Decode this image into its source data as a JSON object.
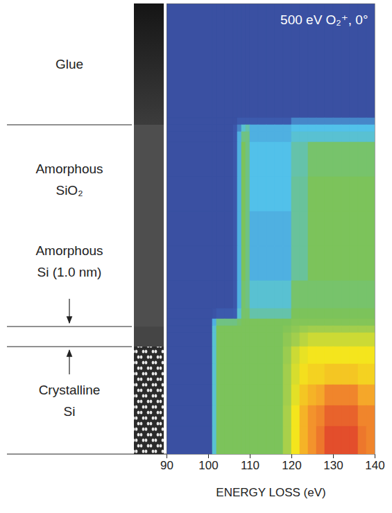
{
  "chart_data": {
    "type": "heatmap",
    "annotation": "500 eV O₂⁺, 0°",
    "xlabel": "ENERGY LOSS (eV)",
    "xlim": [
      90,
      140
    ],
    "xticks": [
      90,
      100,
      110,
      120,
      130,
      140
    ],
    "ylim": [
      0,
      65
    ],
    "tick_labels": "x",
    "zlim": [
      0,
      10
    ],
    "x_bins": [
      90,
      101,
      102,
      104,
      106,
      107,
      108,
      109,
      110,
      112,
      114,
      116,
      118,
      120,
      122,
      124,
      126,
      128,
      130,
      132,
      134,
      136,
      138,
      140
    ],
    "y_bins": [
      0,
      16.5,
      17.5,
      18.5,
      20,
      25,
      30,
      35,
      40,
      44,
      45.5,
      46.5,
      47.5,
      49.5,
      52,
      55,
      58,
      61,
      65
    ],
    "cells": [
      [
        0,
        0,
        0,
        0,
        0,
        0,
        0,
        0,
        0,
        0,
        0,
        0,
        0,
        0,
        0,
        0,
        0,
        0,
        0,
        0,
        0,
        0,
        0
      ],
      [
        0,
        0,
        0,
        0,
        0,
        1.5,
        1.5,
        1.5,
        1.5,
        1.5,
        1.5,
        1.5,
        1.5,
        2.5,
        2.5,
        2.5,
        2.5,
        2.5,
        2.5,
        2.5,
        2.5,
        2.5,
        2.5
      ],
      [
        0,
        0,
        0,
        0,
        1,
        2.5,
        3.5,
        4,
        3,
        3,
        3,
        3,
        3,
        3.2,
        3.2,
        3.2,
        3.2,
        3.2,
        3.2,
        3.2,
        3.2,
        3.2,
        3.2
      ],
      [
        0,
        0,
        0,
        0,
        1,
        3,
        4.5,
        4.5,
        3,
        3,
        3,
        3,
        3,
        3.5,
        3.5,
        3.5,
        3.5,
        3.5,
        3.5,
        3.5,
        3.5,
        3.5,
        3.5
      ],
      [
        0,
        0,
        0,
        0,
        1,
        3,
        5,
        4.5,
        3.2,
        3.2,
        3.2,
        3.2,
        3.2,
        4,
        4,
        4.8,
        4.8,
        4.8,
        4.8,
        4.8,
        4.8,
        4.8,
        4.8
      ],
      [
        0,
        0,
        0,
        0,
        1,
        3,
        5,
        4.5,
        3.2,
        3.2,
        3.2,
        3.2,
        3.2,
        4.2,
        4.2,
        5,
        5,
        5,
        5,
        5,
        5,
        5,
        5
      ],
      [
        0,
        0,
        0,
        0,
        1,
        3,
        5,
        4.5,
        3,
        3,
        3,
        3,
        3,
        4.2,
        4.2,
        5,
        5,
        5,
        5,
        5,
        5,
        5,
        5
      ],
      [
        0,
        0,
        0,
        0,
        1,
        3,
        5,
        4.5,
        3,
        3,
        3,
        3,
        3,
        4.2,
        4.2,
        5,
        5,
        5,
        5,
        5,
        5,
        5,
        5
      ],
      [
        0,
        0,
        0,
        0,
        1,
        3,
        4.8,
        4.5,
        3.5,
        3.5,
        3.5,
        3.5,
        3.5,
        4.8,
        4.8,
        4.8,
        4.8,
        4.8,
        4.8,
        4.8,
        4.8,
        4.8,
        4.8
      ],
      [
        0,
        0.5,
        1.5,
        1.5,
        2,
        3.5,
        4.8,
        4.8,
        4,
        4,
        4,
        4,
        4,
        5,
        5,
        5,
        5,
        5,
        5,
        5,
        5,
        5,
        5
      ],
      [
        0,
        3,
        4.5,
        4.5,
        4.5,
        4.8,
        5,
        5,
        5,
        5,
        5,
        5,
        5,
        5.2,
        5.2,
        5.2,
        5.2,
        5.2,
        5.2,
        5.2,
        5.2,
        5.2,
        5.2
      ],
      [
        0,
        3.5,
        5,
        5,
        5,
        5,
        5,
        5,
        5,
        5,
        5,
        5,
        5.2,
        5.5,
        5.8,
        6,
        6,
        6,
        6,
        6,
        6,
        6,
        6
      ],
      [
        0,
        3.5,
        5,
        5,
        5,
        5,
        5,
        5,
        5,
        5,
        5,
        5,
        5.5,
        6,
        6.5,
        6.8,
        6.8,
        6.8,
        6.8,
        6.8,
        6.8,
        6.8,
        6.8
      ],
      [
        0,
        3.5,
        5,
        5,
        5,
        5,
        5,
        5,
        5,
        5,
        5,
        5,
        5.8,
        6.8,
        7.3,
        7.5,
        7.5,
        7.5,
        7.5,
        7.5,
        7.5,
        7.5,
        7.5
      ],
      [
        0,
        3.5,
        5,
        5,
        5,
        5,
        5,
        5,
        5,
        5,
        5,
        5,
        6,
        7,
        7.6,
        7.8,
        7.8,
        8,
        8,
        8,
        8,
        7.8,
        7.8
      ],
      [
        0,
        3.5,
        5,
        5,
        5,
        5,
        5,
        5,
        5,
        5,
        5,
        5,
        6,
        7.2,
        8,
        8.3,
        8.5,
        9,
        9,
        9,
        9,
        8.5,
        8.5
      ],
      [
        0,
        3.5,
        5,
        5,
        5,
        5,
        5,
        5,
        5,
        5,
        5,
        5,
        6.2,
        7.5,
        8.3,
        8.8,
        9,
        9.5,
        9.5,
        9.5,
        9.5,
        9,
        9
      ],
      [
        0,
        3.5,
        5,
        5,
        5,
        5,
        5,
        5,
        5,
        5,
        5,
        5,
        6.2,
        7.5,
        8.3,
        8.8,
        9.2,
        9.8,
        9.8,
        9.8,
        9.8,
        9.2,
        9
      ]
    ],
    "layers": [
      {
        "label": "Glue",
        "top": 0,
        "bottom": 17.5
      },
      {
        "label": "Amorphous SiO₂",
        "top": 17.5,
        "bottom": 46.6
      },
      {
        "label": "Amorphous Si (1.0 nm)",
        "top": 46.6,
        "bottom": 49.5
      },
      {
        "label": "Crystalline Si",
        "top": 49.5,
        "bottom": 65
      }
    ]
  }
}
